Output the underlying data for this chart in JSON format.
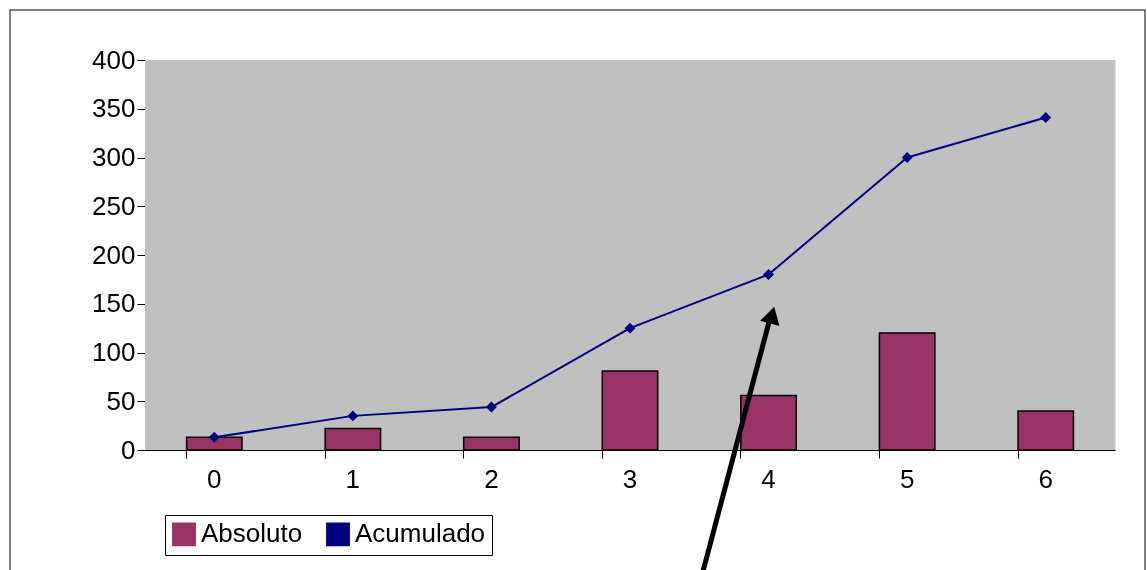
{
  "chart_data": {
    "type": "bar",
    "categories": [
      "0",
      "1",
      "2",
      "3",
      "4",
      "5",
      "6"
    ],
    "series": [
      {
        "name": "Absoluto",
        "color": "#993366",
        "values": [
          13,
          22,
          13,
          81,
          56,
          120,
          40
        ]
      },
      {
        "name": "Acumulado",
        "type": "line",
        "color": "#000080",
        "values": [
          13,
          35,
          44,
          125,
          180,
          300,
          341
        ]
      }
    ],
    "ylim": [
      0,
      400
    ],
    "yticks": [
      0,
      50,
      100,
      150,
      200,
      250,
      300,
      350,
      400
    ],
    "legend": "bottom",
    "marker": "diamond",
    "line_style": "solid"
  }
}
